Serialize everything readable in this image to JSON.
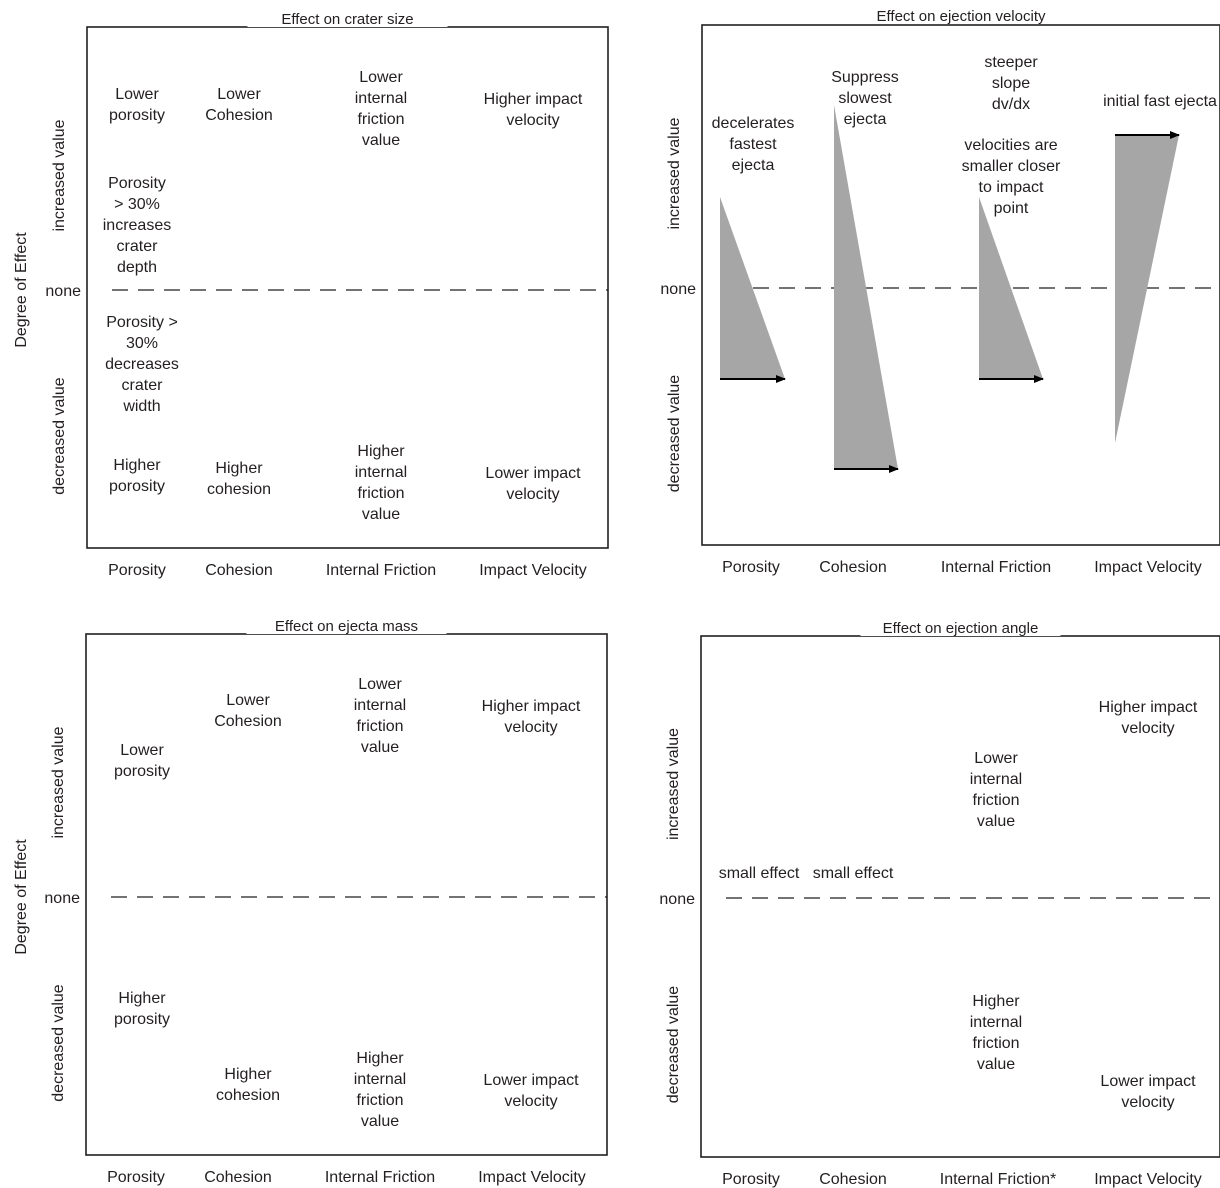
{
  "y_axis_title": "Degree of Effect",
  "none_label": "none",
  "increased_label": "increased value",
  "decreased_label": "decreased value",
  "panels": [
    {
      "title": "Effect on crater size",
      "categories": [
        "Porosity",
        "Cohesion",
        "Internal Friction",
        "Impact Velocity"
      ],
      "notes": [
        [
          "Lower",
          "porosity"
        ],
        [
          "Lower",
          "Cohesion"
        ],
        [
          "Lower",
          "internal",
          "friction",
          "value"
        ],
        [
          "Higher impact",
          "velocity"
        ],
        [
          "Porosity",
          "> 30%",
          "increases",
          "crater",
          "depth"
        ],
        [
          "Porosity >",
          "30%",
          "decreases",
          "crater",
          "width"
        ],
        [
          "Higher",
          "porosity"
        ],
        [
          "Higher",
          "cohesion"
        ],
        [
          "Higher",
          "internal",
          "friction",
          "value"
        ],
        [
          "Lower impact",
          "velocity"
        ]
      ]
    },
    {
      "title": "Effect on ejection velocity",
      "categories": [
        "Porosity",
        "Cohesion",
        "Internal Friction",
        "Impact Velocity"
      ],
      "notes": [
        [
          "decelerates",
          "fastest",
          "ejecta"
        ],
        [
          "Suppress",
          "slowest",
          "ejecta"
        ],
        [
          "steeper",
          "slope",
          "dv/dx"
        ],
        [
          "velocities are",
          "smaller closer",
          "to impact",
          "point"
        ],
        [
          "initial fast ejecta"
        ]
      ]
    },
    {
      "title": "Effect on ejecta mass",
      "categories": [
        "Porosity",
        "Cohesion",
        "Internal Friction",
        "Impact Velocity"
      ],
      "notes": [
        [
          "Lower",
          "porosity"
        ],
        [
          "Lower",
          "Cohesion"
        ],
        [
          "Lower",
          "internal",
          "friction",
          "value"
        ],
        [
          "Higher impact",
          "velocity"
        ],
        [
          "Higher",
          "porosity"
        ],
        [
          "Higher",
          "cohesion"
        ],
        [
          "Higher",
          "internal",
          "friction",
          "value"
        ],
        [
          "Lower impact",
          "velocity"
        ]
      ]
    },
    {
      "title": "Effect on ejection angle",
      "categories": [
        "Porosity",
        "Cohesion",
        "Internal Friction*",
        "Impact Velocity"
      ],
      "notes": [
        [
          "small effect"
        ],
        [
          "small effect"
        ],
        [
          "Lower",
          "internal",
          "friction",
          "value"
        ],
        [
          "Higher impact",
          "velocity"
        ],
        [
          "Higher",
          "internal",
          "friction",
          "value"
        ],
        [
          "Lower impact",
          "velocity"
        ]
      ]
    }
  ]
}
